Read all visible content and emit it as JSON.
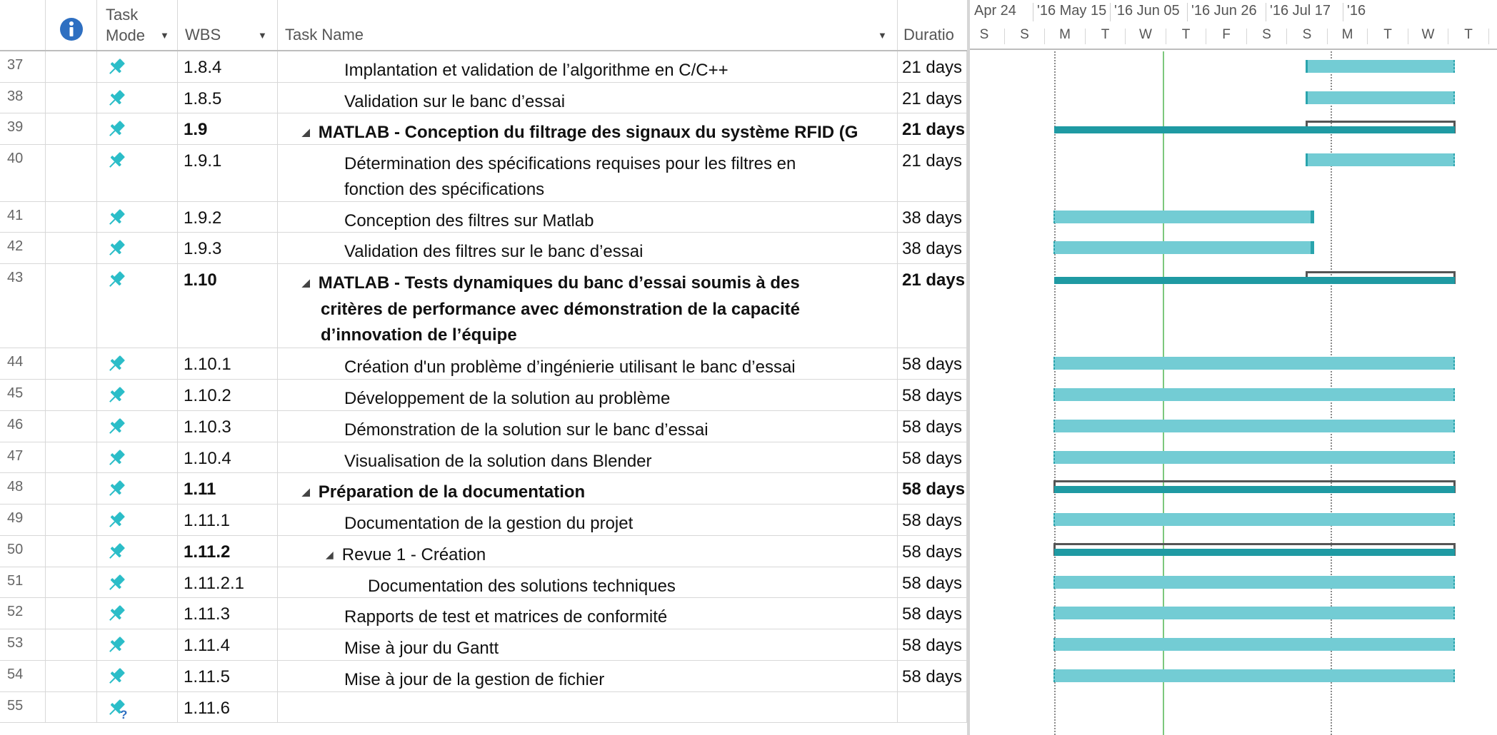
{
  "columns": {
    "info_icon": "info-icon",
    "mode_line1": "Task",
    "mode_line2": "Mode",
    "wbs": "WBS",
    "name": "Task Name",
    "duration": "Duratio"
  },
  "timeline": {
    "top_labels": [
      "Apr 24",
      "'16 May 15",
      "'16 Jun 05",
      "'16 Jun 26",
      "'16 Jul 17",
      "'16"
    ],
    "day_letters": [
      "S",
      "S",
      "M",
      "T",
      "W",
      "T",
      "F",
      "S",
      "S",
      "M",
      "T",
      "W",
      "T"
    ]
  },
  "colors": {
    "task_bar": "#73ccd4",
    "summary_bar": "#1f9aa3",
    "today_line": "#7dc87d",
    "pin_icon": "#2bbdc8"
  },
  "rows": [
    {
      "id": "37",
      "wbs": "1.8.4",
      "name": "Implantation et validation de l’algorithme en C/C++",
      "name2": "",
      "name3": "",
      "duration": "21 days",
      "summary": false,
      "level": 1,
      "mode": "pin"
    },
    {
      "id": "38",
      "wbs": "1.8.5",
      "name": "Validation sur le banc d’essai",
      "name2": "",
      "name3": "",
      "duration": "21 days",
      "summary": false,
      "level": 1,
      "mode": "pin"
    },
    {
      "id": "39",
      "wbs": "1.9",
      "name": "MATLAB - Conception du filtrage des signaux du système RFID (G",
      "name2": "",
      "name3": "",
      "duration": "21 days",
      "summary": true,
      "level": 0,
      "mode": "pin"
    },
    {
      "id": "40",
      "wbs": "1.9.1",
      "name": "Détermination des spécifications requises pour les filtres en",
      "name2": "fonction des spécifications",
      "name3": "",
      "duration": "21 days",
      "summary": false,
      "level": 1,
      "mode": "pin"
    },
    {
      "id": "41",
      "wbs": "1.9.2",
      "name": "Conception des filtres sur Matlab",
      "name2": "",
      "name3": "",
      "duration": "38 days",
      "summary": false,
      "level": 1,
      "mode": "pin"
    },
    {
      "id": "42",
      "wbs": "1.9.3",
      "name": "Validation des filtres sur le banc d’essai",
      "name2": "",
      "name3": "",
      "duration": "38 days",
      "summary": false,
      "level": 1,
      "mode": "pin"
    },
    {
      "id": "43",
      "wbs": "1.10",
      "name": "MATLAB - Tests dynamiques du banc d’essai soumis à des",
      "name2": "critères de performance avec démonstration de la capacité",
      "name3": "d’innovation de l’équipe",
      "duration": "21 days",
      "summary": true,
      "level": 0,
      "mode": "pin"
    },
    {
      "id": "44",
      "wbs": "1.10.1",
      "name": "Création d'un problème d’ingénierie utilisant le banc d’essai",
      "name2": "",
      "name3": "",
      "duration": "58 days",
      "summary": false,
      "level": 1,
      "mode": "pin"
    },
    {
      "id": "45",
      "wbs": "1.10.2",
      "name": "Développement de la solution au problème",
      "name2": "",
      "name3": "",
      "duration": "58 days",
      "summary": false,
      "level": 1,
      "mode": "pin"
    },
    {
      "id": "46",
      "wbs": "1.10.3",
      "name": "Démonstration de la solution sur le banc d’essai",
      "name2": "",
      "name3": "",
      "duration": "58 days",
      "summary": false,
      "level": 1,
      "mode": "pin"
    },
    {
      "id": "47",
      "wbs": "1.10.4",
      "name": "Visualisation de la solution dans Blender",
      "name2": "",
      "name3": "",
      "duration": "58 days",
      "summary": false,
      "level": 1,
      "mode": "pin"
    },
    {
      "id": "48",
      "wbs": "1.11",
      "name": "Préparation de la documentation",
      "name2": "",
      "name3": "",
      "duration": "58 days",
      "summary": true,
      "level": 0,
      "mode": "pin"
    },
    {
      "id": "49",
      "wbs": "1.11.1",
      "name": "Documentation de la gestion du projet",
      "name2": "",
      "name3": "",
      "duration": "58 days",
      "summary": false,
      "level": 1,
      "mode": "pin"
    },
    {
      "id": "50",
      "wbs": "1.11.2",
      "name": "Revue 1 - Création",
      "name2": "",
      "name3": "",
      "duration": "58 days",
      "summary": false,
      "level": 1,
      "subsummary": true,
      "mode": "pin"
    },
    {
      "id": "51",
      "wbs": "1.11.2.1",
      "name": "Documentation des solutions techniques",
      "name2": "",
      "name3": "",
      "duration": "58 days",
      "summary": false,
      "level": 2,
      "mode": "pin"
    },
    {
      "id": "52",
      "wbs": "1.11.3",
      "name": "Rapports de test et matrices de conformité",
      "name2": "",
      "name3": "",
      "duration": "58 days",
      "summary": false,
      "level": 1,
      "mode": "pin"
    },
    {
      "id": "53",
      "wbs": "1.11.4",
      "name": "Mise à jour du Gantt",
      "name2": "",
      "name3": "",
      "duration": "58 days",
      "summary": false,
      "level": 1,
      "mode": "pin"
    },
    {
      "id": "54",
      "wbs": "1.11.5",
      "name": "Mise  à jour de la gestion de fichier",
      "name2": "",
      "name3": "",
      "duration": "58 days",
      "summary": false,
      "level": 1,
      "mode": "pin"
    },
    {
      "id": "55",
      "wbs": "1.11.6",
      "name": "",
      "name2": "",
      "name3": "",
      "duration": "",
      "summary": false,
      "level": 1,
      "mode": "pin-question"
    }
  ]
}
